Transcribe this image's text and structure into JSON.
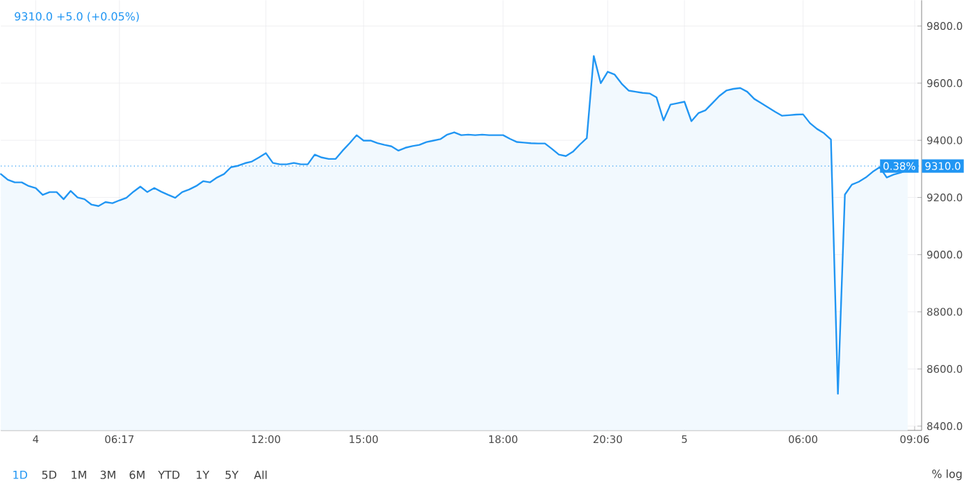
{
  "chart_data": {
    "type": "area",
    "title": "9310.0 +5.0 (+0.05%)",
    "ylim": [
      8385,
      9890
    ],
    "categories": [
      null,
      null,
      null,
      null,
      null,
      "4",
      null,
      null,
      null,
      null,
      null,
      null,
      null,
      null,
      null,
      null,
      null,
      "06:17",
      null,
      null,
      null,
      null,
      null,
      null,
      null,
      null,
      null,
      null,
      null,
      null,
      null,
      null,
      null,
      null,
      null,
      null,
      null,
      null,
      "12:00",
      null,
      null,
      null,
      null,
      null,
      null,
      null,
      null,
      null,
      null,
      null,
      null,
      null,
      "15:00",
      null,
      null,
      null,
      null,
      null,
      null,
      null,
      null,
      null,
      null,
      null,
      null,
      null,
      null,
      null,
      null,
      null,
      null,
      null,
      "18:00",
      null,
      null,
      null,
      null,
      null,
      null,
      null,
      null,
      null,
      null,
      null,
      null,
      null,
      null,
      "20:30",
      null,
      null,
      null,
      null,
      null,
      null,
      null,
      null,
      null,
      null,
      "5",
      null,
      null,
      null,
      null,
      null,
      null,
      null,
      null,
      null,
      null,
      null,
      null,
      null,
      null,
      null,
      null,
      "06:00",
      null,
      null,
      null,
      null,
      null,
      null,
      null,
      null,
      null,
      null,
      null,
      null,
      null,
      null,
      null,
      "09:06",
      null
    ],
    "yticks": [
      {
        "value": 8400,
        "label": "8400.0"
      },
      {
        "value": 8600,
        "label": "8600.0"
      },
      {
        "value": 8800,
        "label": "8800.0"
      },
      {
        "value": 9000,
        "label": "9000.0"
      },
      {
        "value": 9200,
        "label": "9200.0"
      },
      {
        "value": 9400,
        "label": "9400.0"
      },
      {
        "value": 9600,
        "label": "9600.0"
      },
      {
        "value": 9800,
        "label": "9800.0"
      }
    ],
    "grid": true,
    "series": [
      {
        "color": "#2196f3",
        "values": [
          9282,
          9262,
          9253,
          9253,
          9240,
          9233,
          9209,
          9219,
          9219,
          9194,
          9223,
          9200,
          9194,
          9175,
          9170,
          9184,
          9180,
          9190,
          9199,
          9220,
          9238,
          9219,
          9233,
          9220,
          9209,
          9199,
          9219,
          9228,
          9240,
          9257,
          9253,
          9270,
          9282,
          9306,
          9311,
          9320,
          9326,
          9340,
          9355,
          9321,
          9316,
          9316,
          9321,
          9316,
          9316,
          9350,
          9340,
          9335,
          9335,
          9364,
          9390,
          9418,
          9399,
          9399,
          9390,
          9384,
          9379,
          9364,
          9374,
          9380,
          9384,
          9394,
          9399,
          9404,
          9420,
          9428,
          9418,
          9420,
          9418,
          9420,
          9418,
          9418,
          9418,
          9405,
          9394,
          9392,
          9390,
          9389,
          9389,
          9370,
          9350,
          9345,
          9360,
          9385,
          9408,
          9695,
          9600,
          9640,
          9630,
          9598,
          9574,
          9570,
          9566,
          9564,
          9550,
          9470,
          9525,
          9530,
          9535,
          9467,
          9495,
          9505,
          9530,
          9555,
          9574,
          9580,
          9583,
          9570,
          9545,
          9530,
          9515,
          9500,
          9486,
          9488,
          9490,
          9491,
          9460,
          9440,
          9425,
          9403,
          8513,
          9210,
          9245,
          9255,
          9270,
          9290,
          9306,
          9270,
          9280,
          9287,
          9296,
          null,
          null
        ]
      }
    ],
    "ref_lines": [
      {
        "axis": "y",
        "value": 9310,
        "label": "9310.0",
        "color": "#2196f3",
        "line_style": "dotted"
      }
    ],
    "annotations": [
      "0.38%",
      "1D",
      "5D",
      "1M",
      "3M",
      "6M",
      "YTD",
      "1Y",
      "5Y",
      "All",
      "%  log"
    ]
  }
}
